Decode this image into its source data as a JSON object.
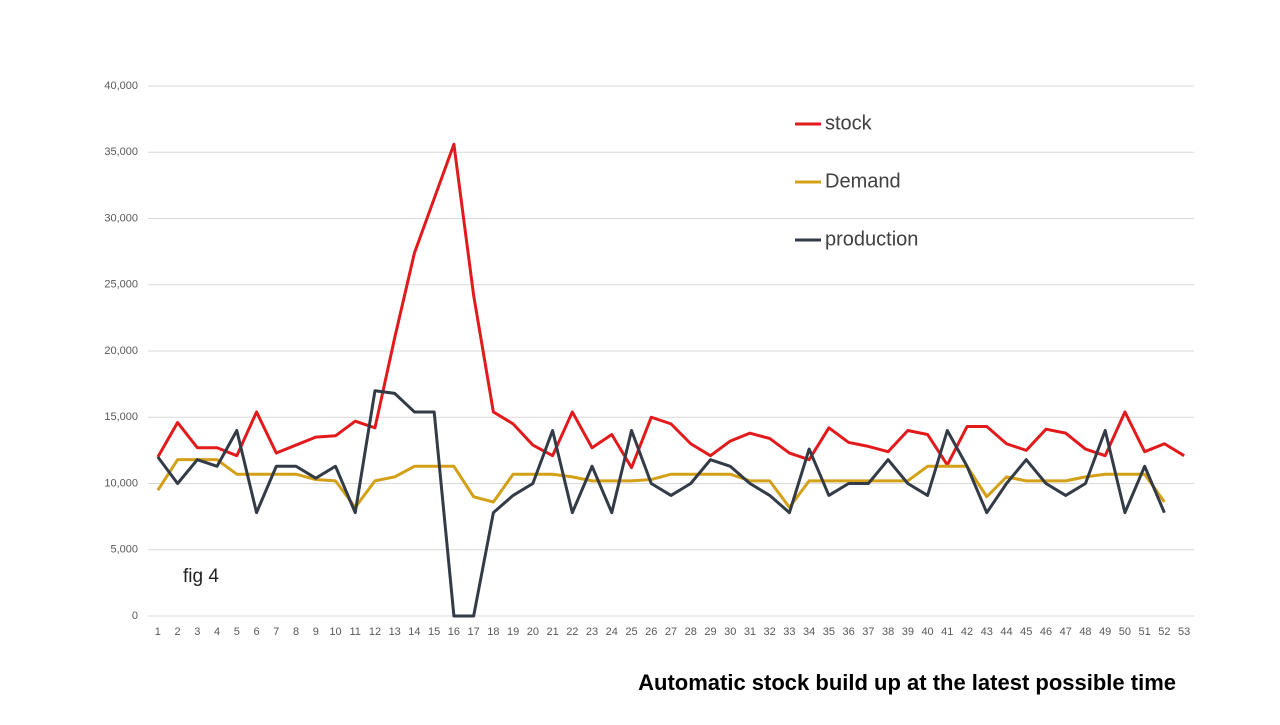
{
  "chart_data": {
    "type": "line",
    "title": "Automatic stock build up at the latest possible time",
    "annotation": "fig 4",
    "categories": [
      1,
      2,
      3,
      4,
      5,
      6,
      7,
      8,
      9,
      10,
      11,
      12,
      13,
      14,
      15,
      16,
      17,
      18,
      19,
      20,
      21,
      22,
      23,
      24,
      25,
      26,
      27,
      28,
      29,
      30,
      31,
      32,
      33,
      34,
      35,
      36,
      37,
      38,
      39,
      40,
      41,
      42,
      43,
      44,
      45,
      46,
      47,
      48,
      49,
      50,
      51,
      52,
      53
    ],
    "series": [
      {
        "name": "stock",
        "color": "#e31a1c",
        "values": [
          12000,
          14600,
          12700,
          12700,
          12100,
          15400,
          12300,
          12900,
          13500,
          13600,
          14700,
          14200,
          21000,
          27400,
          31500,
          35600,
          24200,
          15400,
          14500,
          12900,
          12100,
          15400,
          12700,
          13700,
          11200,
          15000,
          14500,
          13000,
          12100,
          13200,
          13800,
          13400,
          12300,
          11800,
          14200,
          13100,
          12800,
          12400,
          14000,
          13700,
          11400,
          14300,
          14300,
          13000,
          12500,
          14100,
          13800,
          12600,
          12100,
          15400,
          12400,
          13000,
          12100
        ]
      },
      {
        "name": "Demand",
        "color": "#d4a017",
        "values": [
          9500,
          11800,
          11800,
          11800,
          10700,
          10700,
          10700,
          10700,
          10300,
          10200,
          8200,
          10200,
          10500,
          11300,
          11300,
          11300,
          9000,
          8600,
          10700,
          10700,
          10700,
          10500,
          10200,
          10200,
          10200,
          10300,
          10700,
          10700,
          10700,
          10700,
          10200,
          10200,
          8200,
          10200,
          10200,
          10200,
          10200,
          10200,
          10200,
          11300,
          11300,
          11300,
          9000,
          10500,
          10200,
          10200,
          10200,
          10500,
          10700,
          10700,
          10700,
          8600,
          null
        ]
      },
      {
        "name": "production",
        "color": "#333b47",
        "values": [
          12000,
          10000,
          11800,
          11300,
          14000,
          7800,
          11300,
          11300,
          10400,
          11300,
          7800,
          17000,
          16800,
          15400,
          15400,
          0,
          0,
          7800,
          9100,
          10000,
          14000,
          7800,
          11300,
          7800,
          14000,
          10000,
          9100,
          10000,
          11800,
          11300,
          10000,
          9100,
          7800,
          12600,
          9100,
          10000,
          10000,
          11800,
          10000,
          9100,
          14000,
          11300,
          7800,
          10000,
          11800,
          10000,
          9100,
          10000,
          14000,
          7800,
          11300,
          7800,
          null
        ]
      }
    ],
    "ylim": [
      0,
      40000
    ],
    "yticks": [
      0,
      {
        "value": 5000,
        "label": "5,000"
      },
      {
        "value": 10000,
        "label": "10,000"
      },
      {
        "value": 15000,
        "label": "15,000"
      },
      {
        "value": 20000,
        "label": "20,000"
      },
      {
        "value": 25000,
        "label": "25,000"
      },
      {
        "value": 30000,
        "label": "30,000"
      },
      {
        "value": 35000,
        "label": "35,000"
      },
      {
        "value": 40000,
        "label": "40,000"
      }
    ],
    "grid": true,
    "legend": "top-right"
  }
}
